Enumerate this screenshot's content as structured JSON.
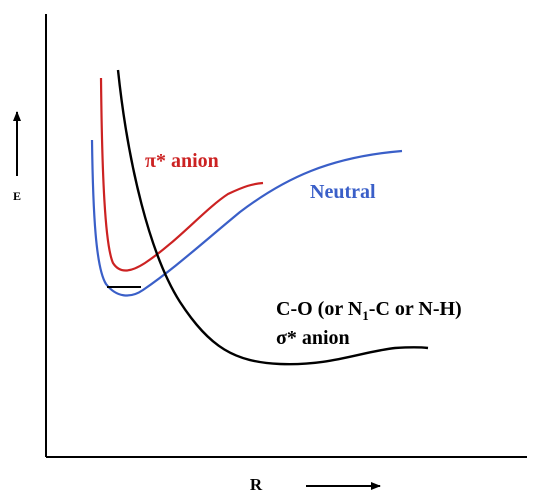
{
  "axes": {
    "y_label": "E",
    "x_label": "R"
  },
  "curves": {
    "pi_anion": {
      "label": "π* anion",
      "color": "#cc2222"
    },
    "neutral": {
      "label": "Neutral",
      "color": "#3a5fc8"
    },
    "sigma_anion": {
      "label_line1_a": "C-O (or N",
      "label_line1_sub": "1",
      "label_line1_b": "-C or N-H)",
      "label_line2": "σ* anion",
      "color": "#000000"
    }
  }
}
